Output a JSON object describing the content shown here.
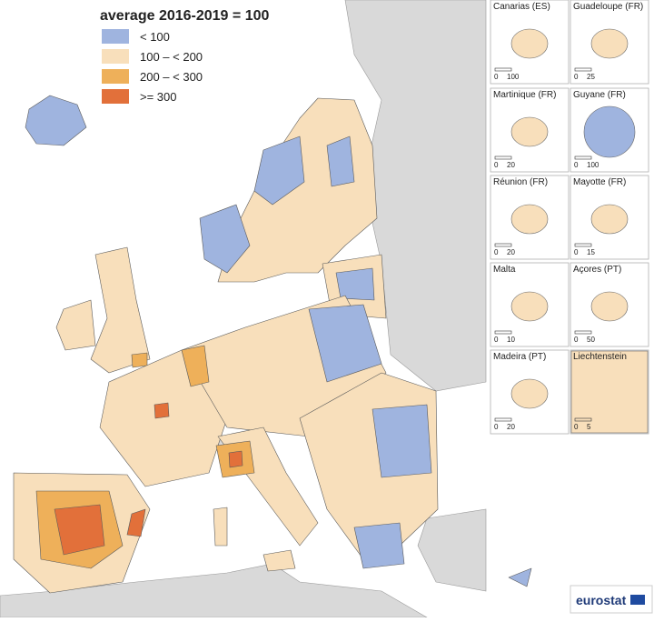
{
  "legend": {
    "title": "average 2016-2019 = 100",
    "items": [
      {
        "label": "< 100",
        "color": "#9fb4df"
      },
      {
        "label": "100 – < 200",
        "color": "#f8dfbb"
      },
      {
        "label": "200 – < 300",
        "color": "#eeb05a"
      },
      {
        "label": ">= 300",
        "color": "#e2703a"
      }
    ]
  },
  "insets": [
    {
      "name": "Canarias (ES)",
      "scale": [
        0,
        100
      ]
    },
    {
      "name": "Guadeloupe (FR)",
      "scale": [
        0,
        25
      ]
    },
    {
      "name": "Martinique (FR)",
      "scale": [
        0,
        20
      ]
    },
    {
      "name": "Guyane (FR)",
      "scale": [
        0,
        100
      ]
    },
    {
      "name": "Réunion (FR)",
      "scale": [
        0,
        20
      ]
    },
    {
      "name": "Mayotte (FR)",
      "scale": [
        0,
        15
      ]
    },
    {
      "name": "Malta",
      "scale": [
        0,
        10
      ]
    },
    {
      "name": "Açores (PT)",
      "scale": [
        0,
        50
      ]
    },
    {
      "name": "Madeira (PT)",
      "scale": [
        0,
        20
      ]
    },
    {
      "name": "Liechtenstein",
      "scale": [
        0,
        5
      ]
    }
  ],
  "logo": "eurostat"
}
